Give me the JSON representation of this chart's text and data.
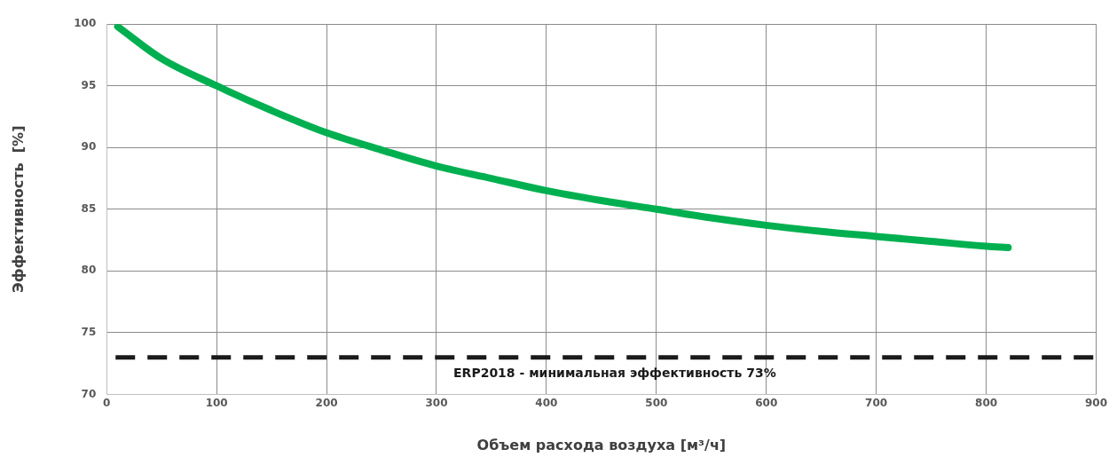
{
  "chart_data": {
    "type": "line",
    "xlabel": "Объем расхода воздуха [м³/ч]",
    "ylabel": "Эффективность  [%]",
    "xlim": [
      0,
      900
    ],
    "xticks": [
      0,
      100,
      200,
      300,
      400,
      500,
      600,
      700,
      800,
      900
    ],
    "ylim": [
      70,
      100
    ],
    "yticks": [
      70,
      75,
      80,
      85,
      90,
      95,
      100
    ],
    "grid": true,
    "legend": false,
    "marker": "none",
    "line_style": "solid",
    "x": [
      10,
      50,
      100,
      150,
      200,
      250,
      300,
      350,
      400,
      450,
      500,
      550,
      600,
      650,
      700,
      750,
      800,
      820
    ],
    "series": [
      {
        "color": "#00b050",
        "values": [
          99.8,
          97.2,
          95.0,
          93.0,
          91.2,
          89.8,
          88.5,
          87.5,
          86.5,
          85.7,
          85.0,
          84.3,
          83.7,
          83.2,
          82.8,
          82.4,
          82.0,
          81.9
        ]
      }
    ],
    "ref_lines": [
      {
        "axis": "y",
        "value": 73,
        "label": "ERP2018 - минимальная эффективность 73%",
        "color": "#1a1a1a",
        "line_style": "dashed"
      }
    ]
  }
}
